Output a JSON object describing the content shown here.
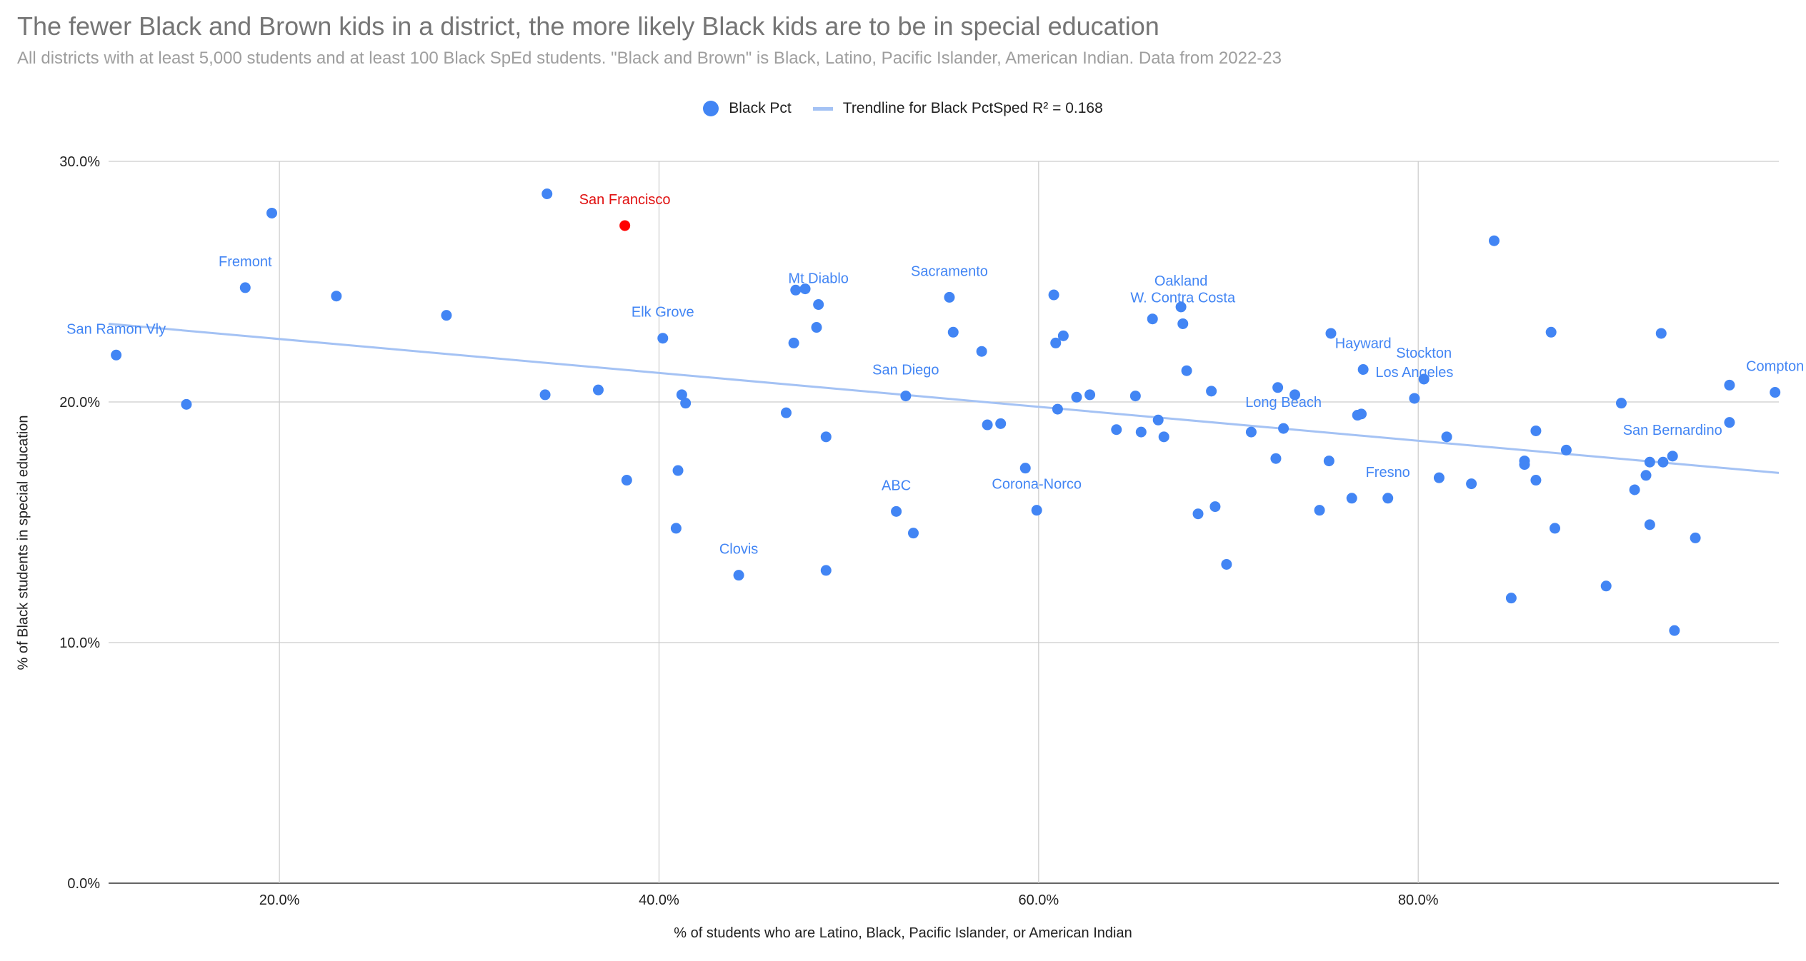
{
  "title": "The fewer Black and Brown kids in a district, the more likely Black kids are to be in special education",
  "subtitle": "All districts with at least 5,000 students and at least 100 Black SpEd students. \"Black and Brown\" is Black, Latino, Pacific Islander, American Indian. Data from 2022-23",
  "legend": {
    "series_label": "Black Pct",
    "trend_label": "Trendline for Black PctSped R² = 0.168"
  },
  "colors": {
    "points": "#4285f4",
    "highlight": "#ff0000",
    "trendline": "#a4c2f4",
    "label_blue": "#4285f4",
    "label_red": "#e01010",
    "grid": "#cccccc"
  },
  "chart_data": {
    "type": "scatter",
    "xlabel": "% of students who are Latino, Black, Pacific Islander, or American Indian",
    "ylabel": "% of Black students in special education",
    "xlim": [
      0.11,
      0.99
    ],
    "ylim": [
      0,
      0.3
    ],
    "x_ticks": [
      {
        "value": 0.2,
        "label": "20.0%"
      },
      {
        "value": 0.4,
        "label": "40.0%"
      },
      {
        "value": 0.6,
        "label": "60.0%"
      },
      {
        "value": 0.8,
        "label": "80.0%"
      }
    ],
    "y_ticks": [
      {
        "value": 0.0,
        "label": "0.0%"
      },
      {
        "value": 0.1,
        "label": "10.0%"
      },
      {
        "value": 0.2,
        "label": "20.0%"
      },
      {
        "value": 0.3,
        "label": "30.0%"
      }
    ],
    "grid": true,
    "legend_position": "top",
    "trendline": {
      "x": [
        0.11,
        0.99
      ],
      "y": [
        0.2325,
        0.1705
      ],
      "r2": 0.168
    },
    "labeled_points": [
      {
        "label": "San Ramon Vly",
        "x": 0.114,
        "y": 0.2195
      },
      {
        "label": "Fremont",
        "x": 0.182,
        "y": 0.2475
      },
      {
        "label": "San Francisco",
        "x": 0.382,
        "y": 0.2733,
        "highlight": true
      },
      {
        "label": "Elk Grove",
        "x": 0.402,
        "y": 0.2265
      },
      {
        "label": "Mt Diablo",
        "x": 0.484,
        "y": 0.2405
      },
      {
        "label": "Sacramento",
        "x": 0.553,
        "y": 0.2435
      },
      {
        "label": "San Diego",
        "x": 0.53,
        "y": 0.2025
      },
      {
        "label": "Oakland",
        "x": 0.675,
        "y": 0.2395
      },
      {
        "label": "W. Contra Costa",
        "x": 0.676,
        "y": 0.2325
      },
      {
        "label": "Long Beach",
        "x": 0.729,
        "y": 0.189
      },
      {
        "label": "Hayward",
        "x": 0.771,
        "y": 0.2135
      },
      {
        "label": "Los Angeles",
        "x": 0.798,
        "y": 0.2015
      },
      {
        "label": "Stockton",
        "x": 0.803,
        "y": 0.2095
      },
      {
        "label": "Fresno",
        "x": 0.784,
        "y": 0.16
      },
      {
        "label": "San Bernardino",
        "x": 0.934,
        "y": 0.1775
      },
      {
        "label": "Compton",
        "x": 0.988,
        "y": 0.204
      },
      {
        "label": "Corona-Norco",
        "x": 0.599,
        "y": 0.155
      },
      {
        "label": "ABC",
        "x": 0.525,
        "y": 0.1545
      },
      {
        "label": "Clovis",
        "x": 0.442,
        "y": 0.128
      }
    ],
    "points": [
      {
        "x": 0.341,
        "y": 0.2865
      },
      {
        "x": 0.196,
        "y": 0.2785
      },
      {
        "x": 0.23,
        "y": 0.244
      },
      {
        "x": 0.288,
        "y": 0.236
      },
      {
        "x": 0.151,
        "y": 0.199
      },
      {
        "x": 0.34,
        "y": 0.203
      },
      {
        "x": 0.368,
        "y": 0.205
      },
      {
        "x": 0.383,
        "y": 0.1675
      },
      {
        "x": 0.412,
        "y": 0.203
      },
      {
        "x": 0.414,
        "y": 0.1995
      },
      {
        "x": 0.41,
        "y": 0.1715
      },
      {
        "x": 0.409,
        "y": 0.1475
      },
      {
        "x": 0.472,
        "y": 0.2465
      },
      {
        "x": 0.477,
        "y": 0.247
      },
      {
        "x": 0.483,
        "y": 0.231
      },
      {
        "x": 0.471,
        "y": 0.2245
      },
      {
        "x": 0.467,
        "y": 0.1955
      },
      {
        "x": 0.488,
        "y": 0.1855
      },
      {
        "x": 0.488,
        "y": 0.13
      },
      {
        "x": 0.534,
        "y": 0.1455
      },
      {
        "x": 0.555,
        "y": 0.229
      },
      {
        "x": 0.57,
        "y": 0.221
      },
      {
        "x": 0.573,
        "y": 0.1905
      },
      {
        "x": 0.58,
        "y": 0.191
      },
      {
        "x": 0.593,
        "y": 0.1725
      },
      {
        "x": 0.608,
        "y": 0.2445
      },
      {
        "x": 0.613,
        "y": 0.2275
      },
      {
        "x": 0.609,
        "y": 0.2245
      },
      {
        "x": 0.61,
        "y": 0.197
      },
      {
        "x": 0.62,
        "y": 0.202
      },
      {
        "x": 0.627,
        "y": 0.203
      },
      {
        "x": 0.641,
        "y": 0.1885
      },
      {
        "x": 0.651,
        "y": 0.2025
      },
      {
        "x": 0.654,
        "y": 0.1875
      },
      {
        "x": 0.66,
        "y": 0.2345
      },
      {
        "x": 0.663,
        "y": 0.1925
      },
      {
        "x": 0.666,
        "y": 0.1855
      },
      {
        "x": 0.678,
        "y": 0.213
      },
      {
        "x": 0.684,
        "y": 0.1535
      },
      {
        "x": 0.691,
        "y": 0.2045
      },
      {
        "x": 0.693,
        "y": 0.1565
      },
      {
        "x": 0.699,
        "y": 0.1325
      },
      {
        "x": 0.712,
        "y": 0.1875
      },
      {
        "x": 0.725,
        "y": 0.1765
      },
      {
        "x": 0.726,
        "y": 0.206
      },
      {
        "x": 0.735,
        "y": 0.203
      },
      {
        "x": 0.748,
        "y": 0.155
      },
      {
        "x": 0.754,
        "y": 0.2285
      },
      {
        "x": 0.753,
        "y": 0.1755
      },
      {
        "x": 0.765,
        "y": 0.16
      },
      {
        "x": 0.768,
        "y": 0.1945
      },
      {
        "x": 0.77,
        "y": 0.195
      },
      {
        "x": 0.811,
        "y": 0.1685
      },
      {
        "x": 0.815,
        "y": 0.1855
      },
      {
        "x": 0.828,
        "y": 0.166
      },
      {
        "x": 0.84,
        "y": 0.267
      },
      {
        "x": 0.849,
        "y": 0.1185
      },
      {
        "x": 0.856,
        "y": 0.1755
      },
      {
        "x": 0.856,
        "y": 0.174
      },
      {
        "x": 0.862,
        "y": 0.188
      },
      {
        "x": 0.862,
        "y": 0.1675
      },
      {
        "x": 0.87,
        "y": 0.229
      },
      {
        "x": 0.872,
        "y": 0.1475
      },
      {
        "x": 0.878,
        "y": 0.18
      },
      {
        "x": 0.899,
        "y": 0.1235
      },
      {
        "x": 0.907,
        "y": 0.1995
      },
      {
        "x": 0.914,
        "y": 0.1635
      },
      {
        "x": 0.92,
        "y": 0.1695
      },
      {
        "x": 0.922,
        "y": 0.175
      },
      {
        "x": 0.922,
        "y": 0.149
      },
      {
        "x": 0.928,
        "y": 0.2285
      },
      {
        "x": 0.929,
        "y": 0.175
      },
      {
        "x": 0.935,
        "y": 0.105
      },
      {
        "x": 0.946,
        "y": 0.1435
      },
      {
        "x": 0.964,
        "y": 0.207
      },
      {
        "x": 0.964,
        "y": 0.1915
      }
    ]
  }
}
